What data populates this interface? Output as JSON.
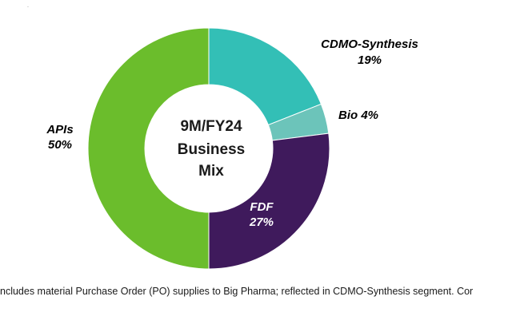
{
  "corner_mark": ".",
  "chart_data": {
    "type": "pie",
    "center_label": [
      "9M/FY24",
      "Business",
      "Mix"
    ],
    "slices": [
      {
        "name": "CDMO-Synthesis",
        "value": 19,
        "value_label": "19%",
        "color": "#33bfb6",
        "label_color": "#1a1a1a"
      },
      {
        "name": "Bio",
        "value": 4,
        "value_label": "4%",
        "color": "#6cc4ba",
        "label_color": "#1a1a1a"
      },
      {
        "name": "FDF",
        "value": 27,
        "value_label": "27%",
        "color": "#3f1a5c",
        "label_color": "#ffffff"
      },
      {
        "name": "APIs",
        "value": 50,
        "value_label": "50%",
        "color": "#6bbd2c",
        "label_color": "#1a1a1a"
      }
    ]
  },
  "footnote": "ncludes material Purchase Order (PO) supplies to Big Pharma; reflected in CDMO-Synthesis segment. Cor"
}
